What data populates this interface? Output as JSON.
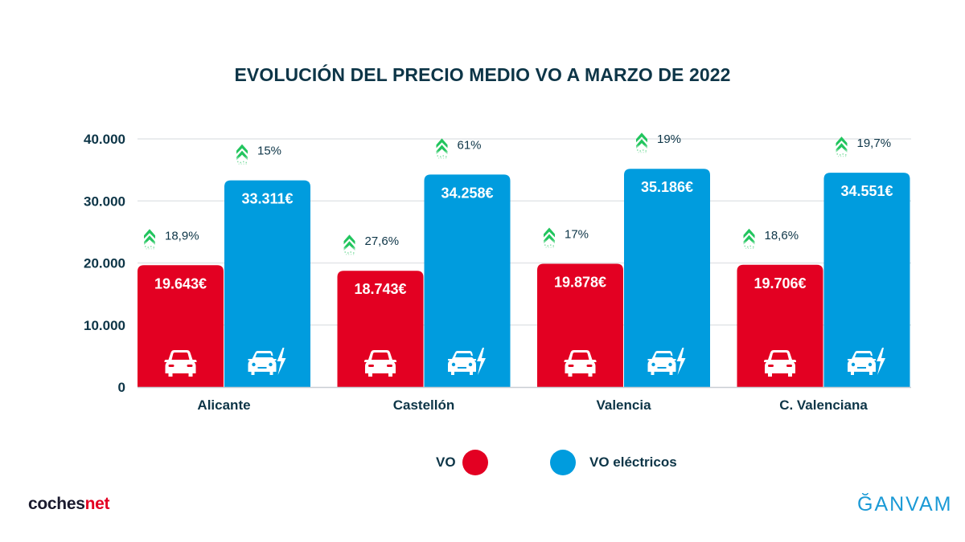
{
  "chart_data": {
    "type": "bar",
    "title": "EVOLUCIÓN DEL PRECIO MEDIO VO A MARZO DE 2022",
    "xlabel": "",
    "ylabel": "",
    "ylim": [
      0,
      40000
    ],
    "yticks": [
      0,
      10000,
      20000,
      30000,
      40000
    ],
    "ytick_labels": [
      "0",
      "10.000",
      "20.000",
      "30.000",
      "40.000"
    ],
    "grid": true,
    "legend_position": "bottom-center",
    "categories": [
      "Alicante",
      "Castellón",
      "Valencia",
      "C. Valenciana"
    ],
    "series": [
      {
        "name": "VO",
        "color": "#e30022",
        "icon": "car-icon",
        "values": [
          19643,
          18743,
          19878,
          19706
        ],
        "labels": [
          "19.643€",
          "18.743€",
          "19.878€",
          "19.706€"
        ],
        "change_labels": [
          "18,9%",
          "27,6%",
          "17%",
          "18,6%"
        ]
      },
      {
        "name": "VO eléctricos",
        "color": "#009cde",
        "icon": "electric-car-icon",
        "values": [
          33311,
          34258,
          35186,
          34551
        ],
        "labels": [
          "33.311€",
          "34.258€",
          "35.186€",
          "34.551€"
        ],
        "change_labels": [
          "15%",
          "61%",
          "19%",
          "19,7%"
        ]
      }
    ],
    "change_icon": "double-chevron-up-icon",
    "change_icon_color": "#22c55e"
  },
  "legend": {
    "items": [
      {
        "label": "VO",
        "color": "#e30022"
      },
      {
        "label": "VO eléctricos",
        "color": "#009cde"
      }
    ]
  },
  "logos": {
    "left": {
      "part1": "coches",
      "part2": "net"
    },
    "right": {
      "text": "ĞANVAM"
    }
  }
}
